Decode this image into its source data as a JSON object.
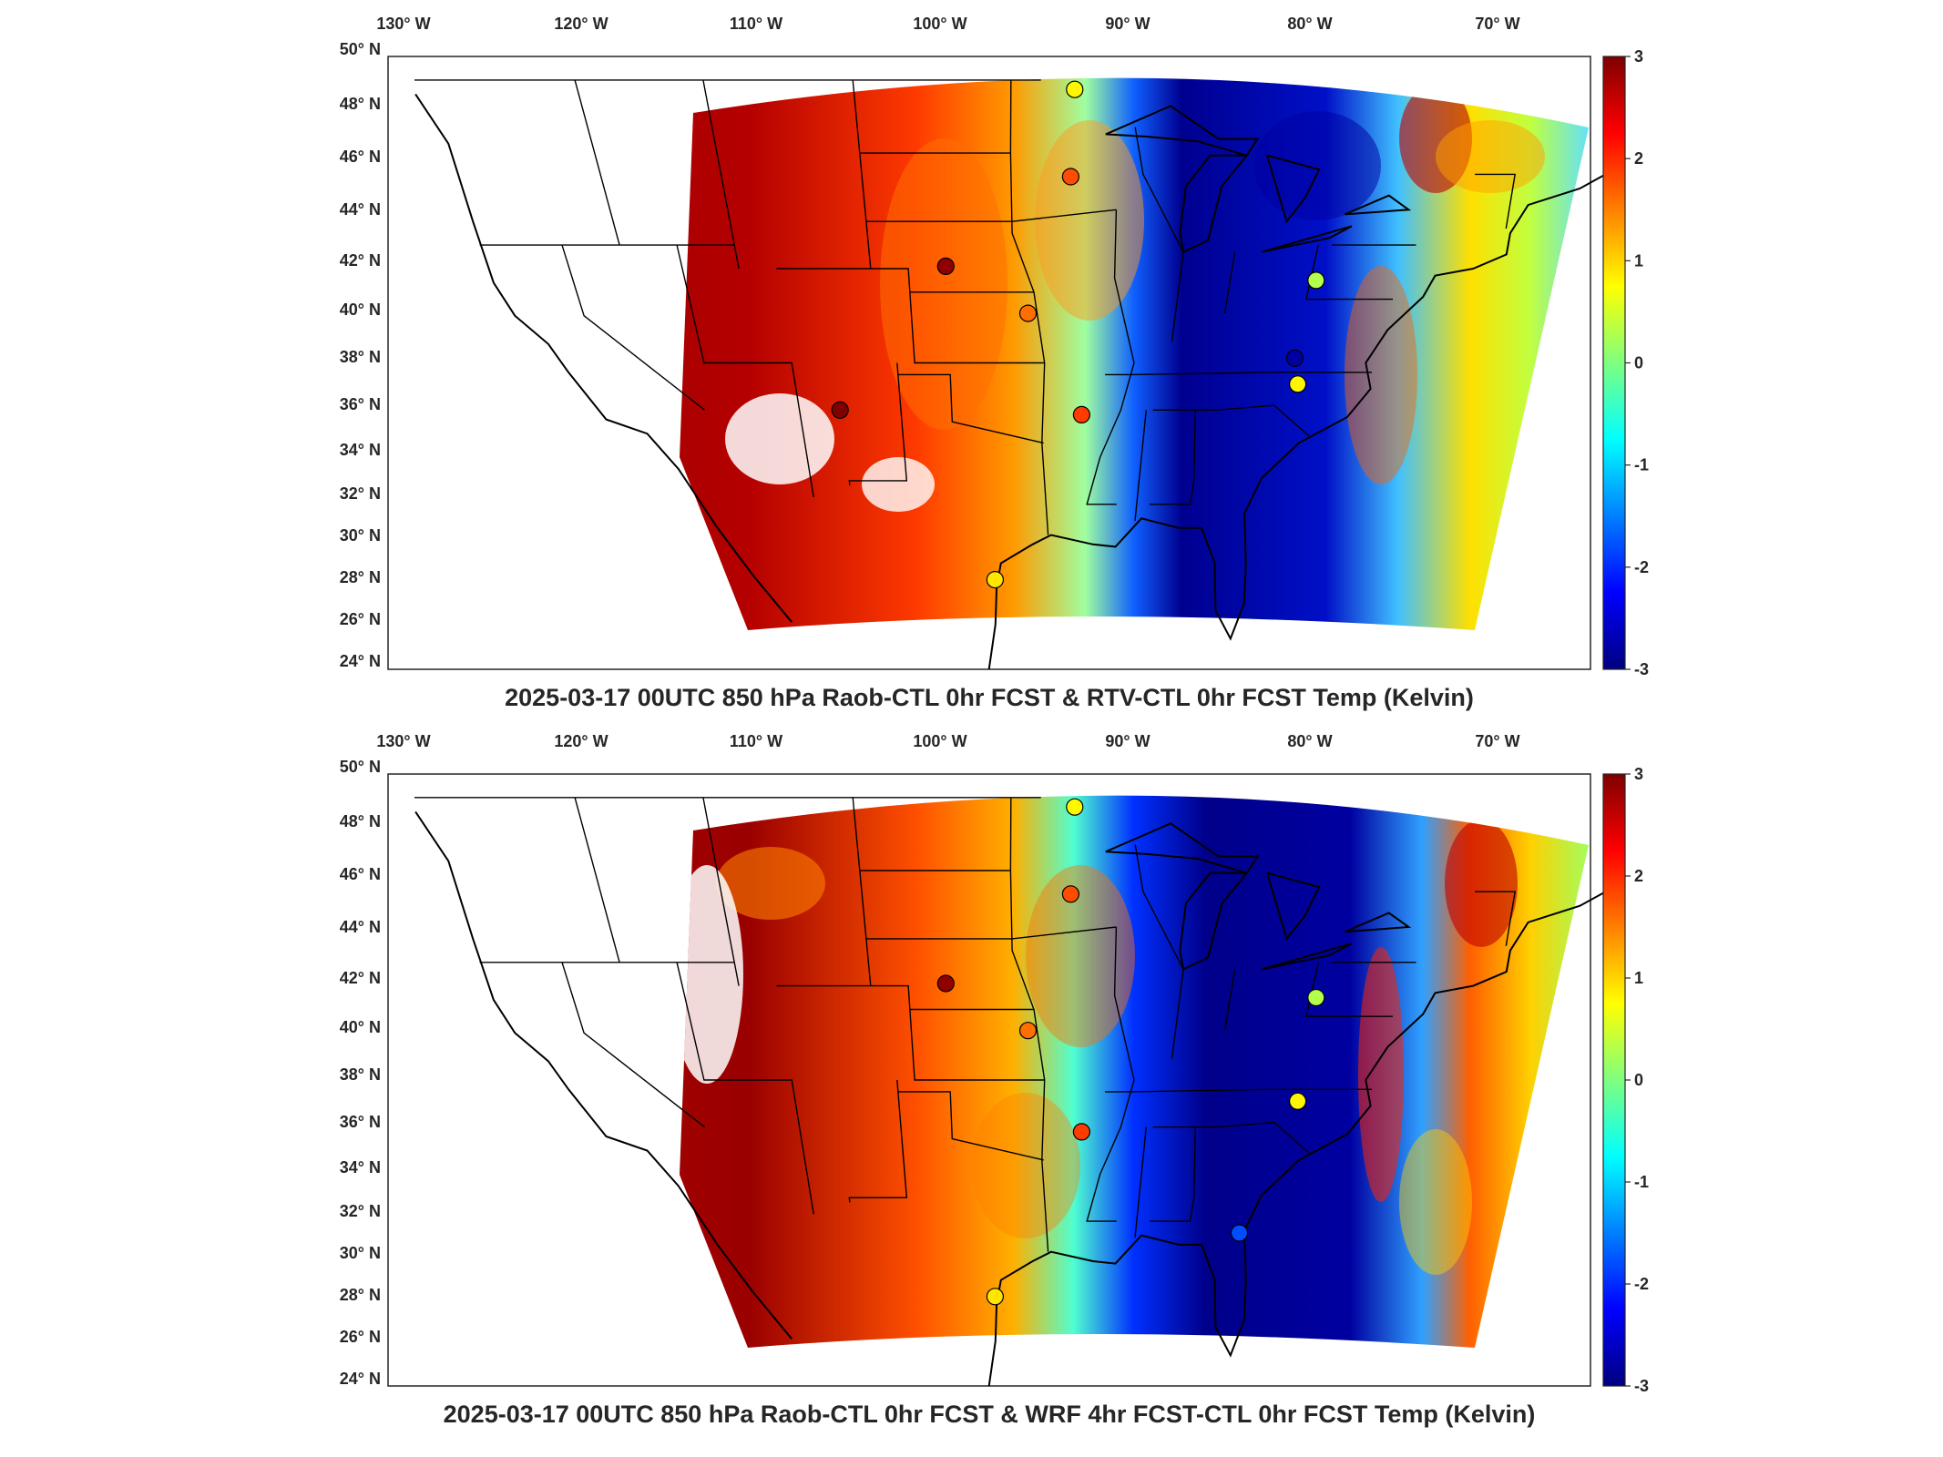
{
  "colors": {
    "ocean_bg": "#ffffff",
    "coast": "#000000",
    "colormap": [
      "#00007f",
      "#0000ff",
      "#007fff",
      "#00ffff",
      "#7fff7f",
      "#ffff00",
      "#ff7f00",
      "#ff0000",
      "#7f0000"
    ]
  },
  "panels": [
    {
      "title": "2025-03-17 00UTC 850 hPa Raob-CTL 0hr FCST & RTV-CTL 0hr FCST Temp (Kelvin)",
      "lon_labels": [
        "130° W",
        "120° W",
        "110° W",
        "100° W",
        "90° W",
        "80° W",
        "70° W"
      ],
      "lat_labels": [
        "50° N",
        "48° N",
        "46° N",
        "44° N",
        "42° N",
        "40° N",
        "38° N",
        "36° N",
        "34° N",
        "32° N",
        "30° N",
        "28° N",
        "26° N",
        "24° N"
      ],
      "colorbar": {
        "ticks": [
          "3",
          "2",
          "1",
          "0",
          "-1",
          "-2",
          "-3"
        ],
        "range": [
          -3,
          3
        ]
      },
      "stations": [
        {
          "lon": -93.6,
          "lat": 48.6,
          "value": 0.8
        },
        {
          "lon": -93.6,
          "lat": 44.9,
          "value": 1.8
        },
        {
          "lon": -100.0,
          "lat": 41.1,
          "value": 2.9
        },
        {
          "lon": -95.6,
          "lat": 39.1,
          "value": 1.6
        },
        {
          "lon": -106.6,
          "lat": 35.0,
          "value": 3.2
        },
        {
          "lon": -92.3,
          "lat": 34.8,
          "value": 1.9
        },
        {
          "lon": -97.5,
          "lat": 27.8,
          "value": 0.9
        },
        {
          "lon": -80.2,
          "lat": 40.5,
          "value": 0.3
        },
        {
          "lon": -80.4,
          "lat": 37.2,
          "value": -2.8
        },
        {
          "lon": -79.9,
          "lat": 36.1,
          "value": 0.8
        }
      ]
    },
    {
      "title": "2025-03-17 00UTC 850 hPa Raob-CTL 0hr FCST & WRF 4hr FCST-CTL 0hr FCST Temp (Kelvin)",
      "lon_labels": [
        "130° W",
        "120° W",
        "110° W",
        "100° W",
        "90° W",
        "80° W",
        "70° W"
      ],
      "lat_labels": [
        "50° N",
        "48° N",
        "46° N",
        "44° N",
        "42° N",
        "40° N",
        "38° N",
        "36° N",
        "34° N",
        "32° N",
        "30° N",
        "28° N",
        "26° N",
        "24° N"
      ],
      "colorbar": {
        "ticks": [
          "3",
          "2",
          "1",
          "0",
          "-1",
          "-2",
          "-3"
        ],
        "range": [
          -3,
          3
        ]
      },
      "stations": [
        {
          "lon": -93.6,
          "lat": 48.6,
          "value": 0.8
        },
        {
          "lon": -93.6,
          "lat": 44.9,
          "value": 1.8
        },
        {
          "lon": -100.0,
          "lat": 41.1,
          "value": 2.9
        },
        {
          "lon": -95.6,
          "lat": 39.1,
          "value": 1.6
        },
        {
          "lon": -92.3,
          "lat": 34.8,
          "value": 1.9
        },
        {
          "lon": -97.5,
          "lat": 27.8,
          "value": 0.9
        },
        {
          "lon": -80.2,
          "lat": 40.5,
          "value": 0.3
        },
        {
          "lon": -79.9,
          "lat": 36.1,
          "value": 0.8
        },
        {
          "lon": -81.7,
          "lat": 30.5,
          "value": -1.8
        }
      ]
    }
  ]
}
